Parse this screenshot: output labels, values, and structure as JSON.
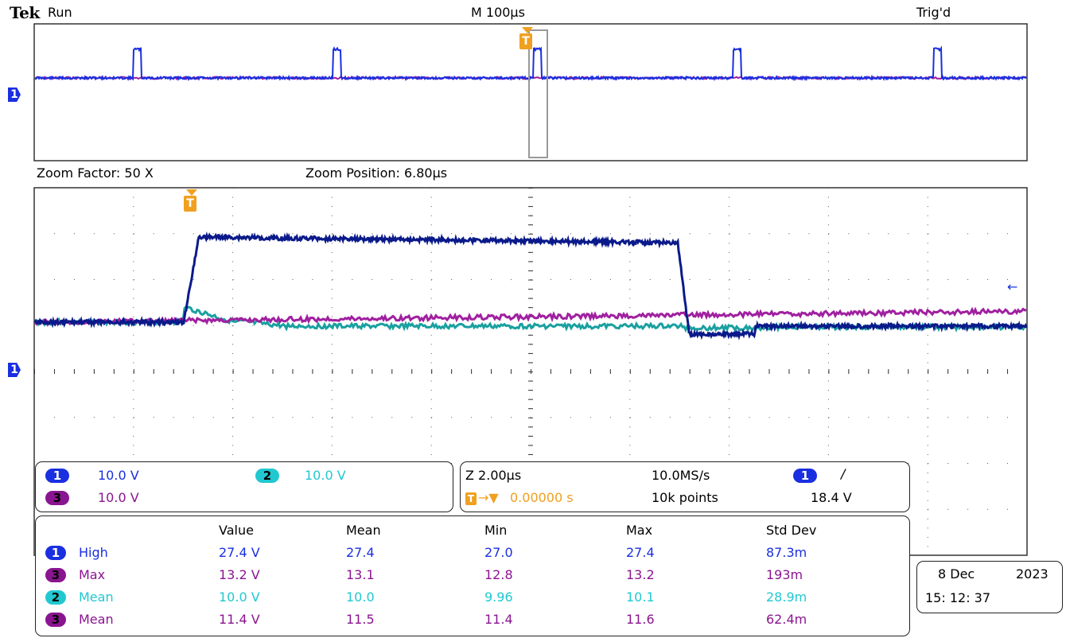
{
  "header": {
    "brand": "Tek",
    "status": "Run",
    "timebase": "M 100µs",
    "trigger_state": "Trig'd"
  },
  "zoom": {
    "factor": "Zoom Factor: 50 X",
    "position": "Zoom Position: 6.80µs"
  },
  "markers": {
    "trigger": "T",
    "ch1": "1"
  },
  "channels": {
    "ch1": {
      "num": "1",
      "scale": "10.0 V",
      "color": "#1a2fe0"
    },
    "ch2": {
      "num": "2",
      "scale": "10.0 V",
      "color": "#22c8d0"
    },
    "ch3": {
      "num": "3",
      "scale": "10.0 V",
      "color": "#8a1590"
    }
  },
  "horizontal": {
    "zoom_scale": "Z 2.00µs",
    "sample_rate": "10.0MS/s",
    "trig_pos": "0.00000 s",
    "record_length": "10k points",
    "trig_source": "1",
    "trig_slope": "/",
    "trig_level": "18.4 V"
  },
  "measurements": {
    "headers": [
      "Value",
      "Mean",
      "Min",
      "Max",
      "Std Dev"
    ],
    "rows": [
      {
        "ch": "1",
        "name": "High",
        "value": "27.4 V",
        "mean": "27.4",
        "min": "27.0",
        "max": "27.4",
        "std": "87.3m",
        "color": "#1a2fe0"
      },
      {
        "ch": "3",
        "name": "Max",
        "value": "13.2 V",
        "mean": "13.1",
        "min": "12.8",
        "max": "13.2",
        "std": "193m",
        "color": "#8a1590"
      },
      {
        "ch": "2",
        "name": "Mean",
        "value": "10.0 V",
        "mean": "10.0",
        "min": "9.96",
        "max": "10.1",
        "std": "28.9m",
        "color": "#22c8d0"
      },
      {
        "ch": "3",
        "name": "Mean",
        "value": "11.4 V",
        "mean": "11.5",
        "min": "11.4",
        "max": "11.6",
        "std": "62.4m",
        "color": "#8a1590"
      }
    ]
  },
  "datetime": {
    "date": "8 Dec",
    "year": "2023",
    "time": "15: 12: 37"
  },
  "colors": {
    "ch1_trace": "#0a1a8a",
    "ch2_trace": "#1aa0a0",
    "ch3_trace": "#a020a0",
    "trigger_marker": "#f0a020"
  }
}
